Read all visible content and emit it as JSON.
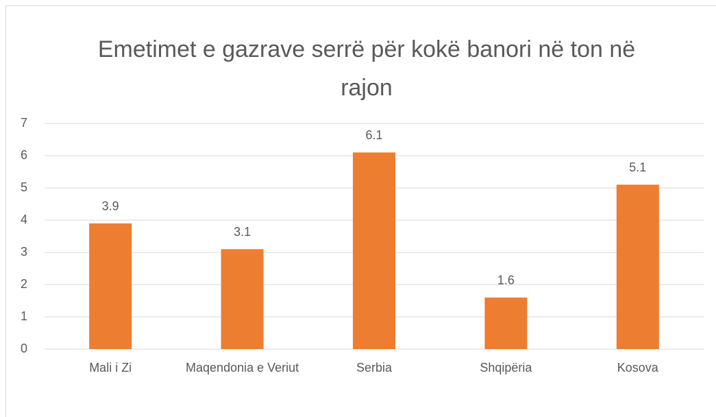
{
  "chart_data": {
    "type": "bar",
    "title": "Emetimet e gazrave serrë për kokë banori në ton në rajon",
    "categories": [
      "Mali i Zi",
      "Maqendonia e Veriut",
      "Serbia",
      "Shqipëria",
      "Kosova"
    ],
    "values": [
      3.9,
      3.1,
      6.1,
      1.6,
      5.1
    ],
    "color": "#ed7d31",
    "ylim": [
      0,
      7
    ],
    "yticks": [
      0,
      1,
      2,
      3,
      4,
      5,
      6,
      7
    ],
    "grid": true,
    "data_labels": true
  }
}
